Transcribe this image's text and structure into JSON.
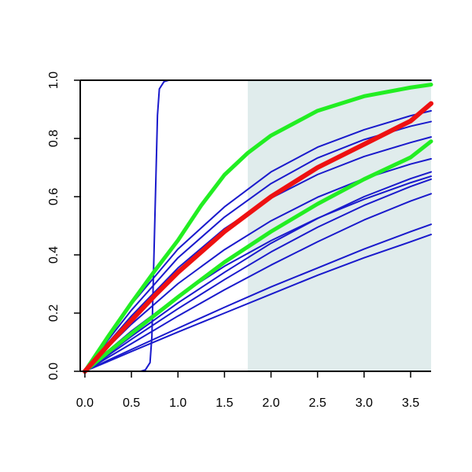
{
  "chart_data": {
    "type": "line",
    "title": "",
    "xlabel": "",
    "ylabel": "",
    "xlim": [
      -0.05,
      3.72
    ],
    "ylim": [
      0,
      1.0
    ],
    "xticks": [
      0.0,
      0.5,
      1.0,
      1.5,
      2.0,
      2.5,
      3.0,
      3.5
    ],
    "yticks": [
      0.0,
      0.2,
      0.4,
      0.6,
      0.8,
      1.0
    ],
    "xtick_labels": [
      "0.0",
      "0.5",
      "1.0",
      "1.5",
      "2.0",
      "2.5",
      "3.0",
      "3.5"
    ],
    "ytick_labels": [
      "0.0",
      "0.2",
      "0.4",
      "0.6",
      "0.8",
      "1.0"
    ],
    "grid": false,
    "legend": "none",
    "shaded_region": {
      "x_start": 1.75,
      "x_end": 3.72,
      "color": "#e0ecec"
    },
    "series": [
      {
        "color": "#1a1acc",
        "width": 2,
        "x": [
          0.0,
          0.6,
          0.65,
          0.7,
          0.72,
          0.75,
          0.78,
          0.8,
          0.85,
          0.9,
          3.72
        ],
        "y": [
          0.0,
          0.0,
          0.005,
          0.03,
          0.12,
          0.5,
          0.88,
          0.97,
          0.995,
          1.0,
          1.0
        ]
      },
      {
        "color": "#1a1acc",
        "width": 2,
        "x": [
          0.0,
          0.25,
          0.5,
          1.0,
          1.5,
          2.0,
          2.5,
          3.0,
          3.5,
          3.72
        ],
        "y": [
          0.0,
          0.071,
          0.138,
          0.258,
          0.361,
          0.449,
          0.526,
          0.591,
          0.648,
          0.67
        ]
      },
      {
        "color": "#1a1acc",
        "width": 2,
        "x": [
          0.0,
          0.25,
          0.5,
          1.0,
          1.5,
          2.0,
          2.5,
          3.0,
          3.5,
          3.72
        ],
        "y": [
          0.0,
          0.084,
          0.162,
          0.301,
          0.418,
          0.517,
          0.598,
          0.662,
          0.712,
          0.73
        ]
      },
      {
        "color": "#1a1acc",
        "width": 2,
        "x": [
          0.0,
          0.25,
          0.5,
          1.0,
          1.5,
          2.0,
          2.5,
          3.0,
          3.5,
          3.72
        ],
        "y": [
          0.0,
          0.098,
          0.19,
          0.355,
          0.49,
          0.595,
          0.676,
          0.738,
          0.786,
          0.805
        ]
      },
      {
        "color": "#1a1acc",
        "width": 2,
        "x": [
          0.0,
          0.25,
          0.5,
          1.0,
          1.5,
          2.0,
          2.5,
          3.0,
          3.5,
          3.72
        ],
        "y": [
          0.0,
          0.108,
          0.21,
          0.39,
          0.53,
          0.645,
          0.733,
          0.796,
          0.842,
          0.858
        ]
      },
      {
        "color": "#1a1acc",
        "width": 2,
        "x": [
          0.0,
          0.25,
          0.5,
          1.0,
          1.5,
          2.0,
          2.5,
          3.0,
          3.5,
          3.72
        ],
        "y": [
          0.0,
          0.12,
          0.23,
          0.42,
          0.565,
          0.685,
          0.77,
          0.83,
          0.878,
          0.895
        ]
      },
      {
        "color": "#1a1acc",
        "width": 2,
        "x": [
          0.0,
          0.25,
          0.5,
          1.0,
          1.5,
          2.0,
          2.5,
          3.0,
          3.5,
          3.72
        ],
        "y": [
          0.0,
          0.055,
          0.11,
          0.215,
          0.315,
          0.41,
          0.495,
          0.57,
          0.635,
          0.66
        ]
      },
      {
        "color": "#1a1acc",
        "width": 2,
        "x": [
          0.0,
          0.25,
          0.5,
          1.0,
          1.5,
          2.0,
          2.5,
          3.0,
          3.5,
          3.72
        ],
        "y": [
          0.0,
          0.06,
          0.12,
          0.235,
          0.34,
          0.44,
          0.525,
          0.6,
          0.662,
          0.685
        ]
      },
      {
        "color": "#1a1acc",
        "width": 2,
        "x": [
          0.0,
          0.25,
          0.5,
          1.0,
          1.5,
          2.0,
          2.5,
          3.0,
          3.5,
          3.72
        ],
        "y": [
          0.0,
          0.048,
          0.095,
          0.19,
          0.28,
          0.365,
          0.445,
          0.52,
          0.585,
          0.61
        ]
      },
      {
        "color": "#1a1acc",
        "width": 2,
        "x": [
          0.0,
          0.25,
          0.5,
          1.0,
          1.5,
          2.0,
          2.5,
          3.0,
          3.5,
          3.72
        ],
        "y": [
          0.0,
          0.038,
          0.075,
          0.148,
          0.22,
          0.29,
          0.355,
          0.42,
          0.48,
          0.505
        ]
      },
      {
        "color": "#1a1acc",
        "width": 2,
        "x": [
          0.0,
          0.25,
          0.5,
          1.0,
          1.5,
          2.0,
          2.5,
          3.0,
          3.5,
          3.72
        ],
        "y": [
          0.0,
          0.034,
          0.068,
          0.135,
          0.2,
          0.265,
          0.33,
          0.39,
          0.445,
          0.47
        ]
      },
      {
        "color": "#22ee22",
        "width": 5,
        "x": [
          0.0,
          0.25,
          0.5,
          0.75,
          1.0,
          1.25,
          1.5,
          1.75,
          2.0,
          2.5,
          3.0,
          3.5,
          3.72
        ],
        "y": [
          0.0,
          0.12,
          0.235,
          0.345,
          0.45,
          0.57,
          0.675,
          0.75,
          0.81,
          0.895,
          0.945,
          0.975,
          0.985
        ]
      },
      {
        "color": "#22ee22",
        "width": 5,
        "x": [
          0.0,
          0.25,
          0.5,
          1.0,
          1.5,
          2.0,
          2.5,
          3.0,
          3.5,
          3.72
        ],
        "y": [
          0.0,
          0.066,
          0.13,
          0.255,
          0.375,
          0.48,
          0.575,
          0.66,
          0.735,
          0.79
        ]
      },
      {
        "color": "#ee1111",
        "width": 6,
        "x": [
          0.0,
          0.25,
          0.5,
          0.75,
          1.0,
          1.5,
          2.0,
          2.5,
          3.0,
          3.5,
          3.72
        ],
        "y": [
          0.0,
          0.09,
          0.175,
          0.26,
          0.34,
          0.48,
          0.6,
          0.7,
          0.78,
          0.86,
          0.92
        ]
      }
    ]
  }
}
